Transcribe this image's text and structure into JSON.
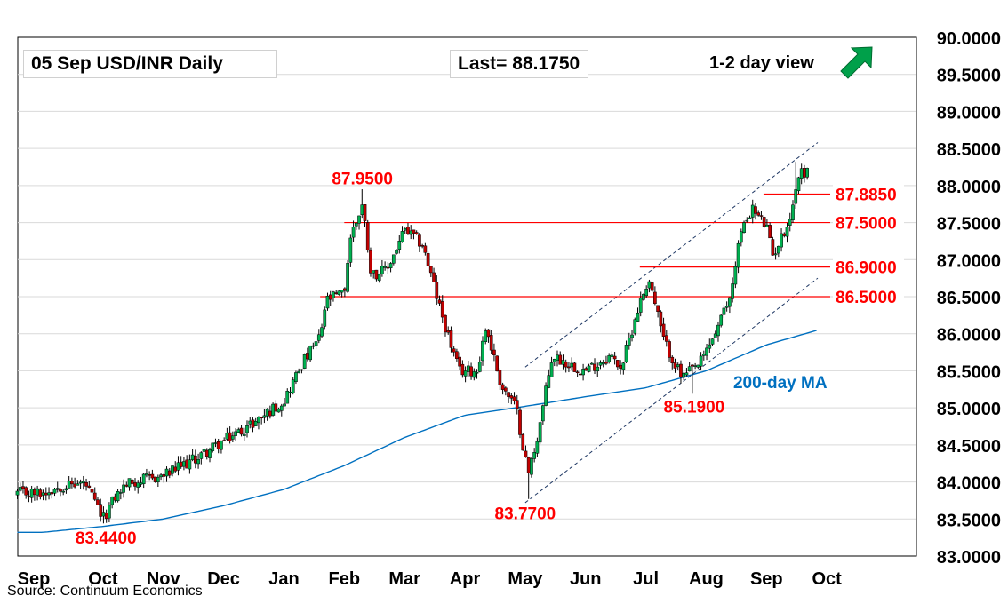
{
  "header": {
    "title": "05 Sep  USD/INR  Daily",
    "last": "Last= 88.1750",
    "view_label": "1-2 day view",
    "view_icon": "up-right-arrow-icon"
  },
  "footer": {
    "source": "Source: Continuum Economics"
  },
  "colors": {
    "up": "#00b050",
    "down": "#c00000",
    "ma": "#0070c0",
    "level": "#ff0000",
    "label": "#ff0000",
    "grid": "#d9d9d9",
    "arrow": "#00a04a"
  },
  "chart_data": {
    "type": "candlestick",
    "title": "05 Sep  USD/INR  Daily",
    "ylim": [
      83.0,
      90.0
    ],
    "y_ticks": [
      "83.0000",
      "83.5000",
      "84.0000",
      "84.5000",
      "85.0000",
      "85.5000",
      "86.0000",
      "86.5000",
      "87.0000",
      "87.5000",
      "88.0000",
      "88.5000",
      "89.0000",
      "89.5000",
      "90.0000"
    ],
    "x_ticks": [
      "Sep",
      "Oct",
      "Nov",
      "Dec",
      "Jan",
      "Feb",
      "Mar",
      "Apr",
      "May",
      "Jun",
      "Jul",
      "Aug",
      "Sep",
      "Oct"
    ],
    "grid": true,
    "price_anchors": [
      {
        "month": 0,
        "price": 83.85
      },
      {
        "month": 0.3,
        "price": 83.95
      },
      {
        "month": 0.7,
        "price": 83.98
      },
      {
        "month": 1.0,
        "price": 83.5
      },
      {
        "month": 1.2,
        "price": 83.8
      },
      {
        "month": 1.4,
        "price": 83.98
      },
      {
        "month": 2.0,
        "price": 84.08
      },
      {
        "month": 2.5,
        "price": 84.3
      },
      {
        "month": 3.0,
        "price": 84.55
      },
      {
        "month": 3.5,
        "price": 84.8
      },
      {
        "month": 4.0,
        "price": 85.1
      },
      {
        "month": 4.3,
        "price": 85.6
      },
      {
        "month": 4.6,
        "price": 85.95
      },
      {
        "month": 4.7,
        "price": 86.45
      },
      {
        "month": 5.0,
        "price": 86.55
      },
      {
        "month": 5.1,
        "price": 87.3
      },
      {
        "month": 5.3,
        "price": 87.75
      },
      {
        "month": 5.45,
        "price": 86.8
      },
      {
        "month": 5.7,
        "price": 86.85
      },
      {
        "month": 6.0,
        "price": 87.4
      },
      {
        "month": 6.3,
        "price": 87.2
      },
      {
        "month": 6.6,
        "price": 86.3
      },
      {
        "month": 6.9,
        "price": 85.5
      },
      {
        "month": 7.2,
        "price": 85.5
      },
      {
        "month": 7.35,
        "price": 86.1
      },
      {
        "month": 7.6,
        "price": 85.3
      },
      {
        "month": 7.85,
        "price": 85.0
      },
      {
        "month": 8.05,
        "price": 84.1
      },
      {
        "month": 8.2,
        "price": 84.6
      },
      {
        "month": 8.45,
        "price": 85.7
      },
      {
        "month": 8.7,
        "price": 85.6
      },
      {
        "month": 9.0,
        "price": 85.5
      },
      {
        "month": 9.4,
        "price": 85.7
      },
      {
        "month": 9.6,
        "price": 85.55
      },
      {
        "month": 9.85,
        "price": 86.3
      },
      {
        "month": 10.05,
        "price": 86.75
      },
      {
        "month": 10.3,
        "price": 85.9
      },
      {
        "month": 10.6,
        "price": 85.4
      },
      {
        "month": 10.9,
        "price": 85.6
      },
      {
        "month": 11.2,
        "price": 86.1
      },
      {
        "month": 11.4,
        "price": 86.5
      },
      {
        "month": 11.55,
        "price": 87.3
      },
      {
        "month": 11.75,
        "price": 87.7
      },
      {
        "month": 12.0,
        "price": 87.45
      },
      {
        "month": 12.1,
        "price": 87.05
      },
      {
        "month": 12.25,
        "price": 87.3
      },
      {
        "month": 12.4,
        "price": 87.6
      },
      {
        "month": 12.55,
        "price": 88.2
      },
      {
        "month": 12.7,
        "price": 88.17
      }
    ],
    "forced_highs": [
      {
        "month": 5.28,
        "price": 87.95
      },
      {
        "month": 12.5,
        "price": 88.32
      }
    ],
    "forced_lows": [
      {
        "month": 1.0,
        "price": 83.44
      },
      {
        "month": 8.05,
        "price": 83.77
      },
      {
        "month": 10.78,
        "price": 85.19
      }
    ],
    "ma_anchors": [
      {
        "month": 0,
        "price": 83.32
      },
      {
        "month": 1,
        "price": 83.4
      },
      {
        "month": 2,
        "price": 83.5
      },
      {
        "month": 3,
        "price": 83.68
      },
      {
        "month": 4,
        "price": 83.9
      },
      {
        "month": 5,
        "price": 84.22
      },
      {
        "month": 6,
        "price": 84.6
      },
      {
        "month": 7,
        "price": 84.9
      },
      {
        "month": 8,
        "price": 85.02
      },
      {
        "month": 9,
        "price": 85.15
      },
      {
        "month": 10,
        "price": 85.27
      },
      {
        "month": 11,
        "price": 85.5
      },
      {
        "month": 12,
        "price": 85.85
      },
      {
        "month": 12.85,
        "price": 86.05
      }
    ],
    "horizontal_levels": [
      {
        "value": 87.885,
        "label": "87.8850",
        "start_month": 11.95
      },
      {
        "value": 87.5,
        "label": "87.5000",
        "start_month": 5.0
      },
      {
        "value": 86.9,
        "label": "86.9000",
        "start_month": 9.9
      },
      {
        "value": 86.5,
        "label": "86.5000",
        "start_month": 4.6
      }
    ],
    "channel_lines": [
      {
        "x1": 8.0,
        "y1": 85.55,
        "x2": 12.85,
        "y2": 88.58
      },
      {
        "x1": 8.0,
        "y1": 83.72,
        "x2": 12.85,
        "y2": 86.75
      }
    ],
    "annotations": [
      {
        "text": "87.9500",
        "month": 5.3,
        "price": 88.1
      },
      {
        "text": "83.4400",
        "month": 1.05,
        "price": 83.25
      },
      {
        "text": "83.7700",
        "month": 8.0,
        "price": 83.58
      },
      {
        "text": "85.1900",
        "month": 10.8,
        "price": 85.02
      }
    ],
    "ma_label": {
      "text": "200-day MA",
      "month": 11.45,
      "price": 85.35
    }
  }
}
